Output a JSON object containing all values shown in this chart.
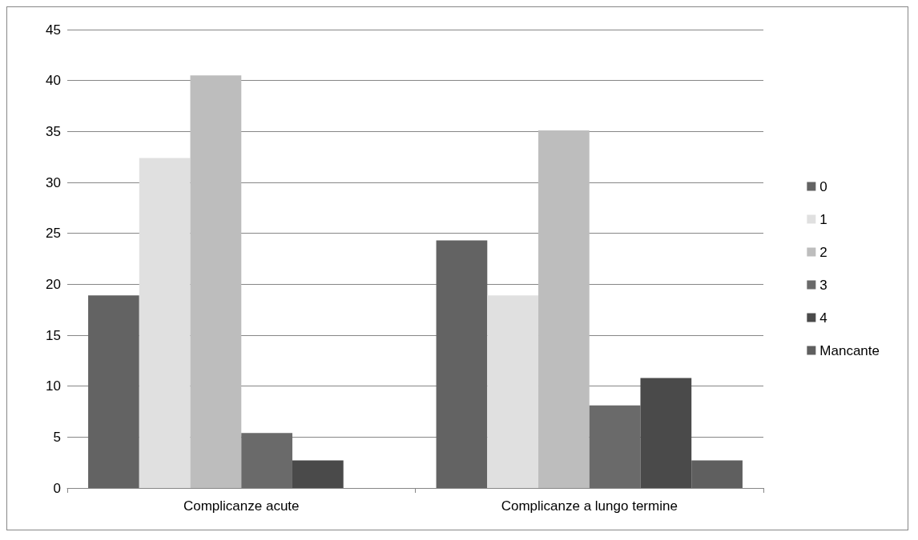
{
  "chart_data": {
    "type": "bar",
    "categories": [
      "Complicanze acute",
      "Complicanze a lungo termine"
    ],
    "series": [
      {
        "name": "0",
        "color": "#636363",
        "values": [
          18.9,
          24.3
        ]
      },
      {
        "name": "1",
        "color": "#e0e0e0",
        "values": [
          32.4,
          18.9
        ]
      },
      {
        "name": "2",
        "color": "#bdbdbd",
        "values": [
          40.5,
          35.1
        ]
      },
      {
        "name": "3",
        "color": "#6a6a6a",
        "values": [
          5.4,
          8.1
        ]
      },
      {
        "name": "4",
        "color": "#4a4a4a",
        "values": [
          2.7,
          10.8
        ]
      },
      {
        "name": "Mancante",
        "color": "#5f5f5f",
        "values": [
          0,
          2.7
        ]
      }
    ],
    "ylim": [
      0,
      45
    ],
    "yticks": [
      0,
      5,
      10,
      15,
      20,
      25,
      30,
      35,
      40,
      45
    ],
    "grid": "y",
    "legend": "right"
  }
}
